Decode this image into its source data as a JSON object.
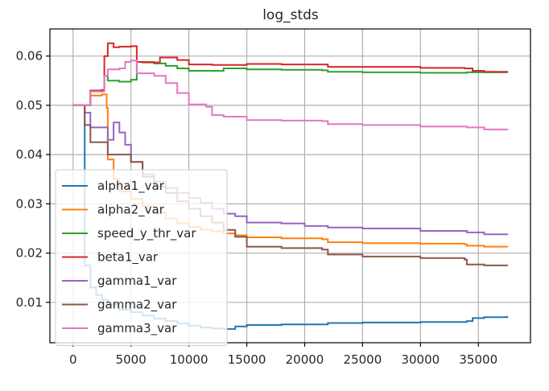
{
  "chart_data": {
    "type": "line",
    "title": "log_stds",
    "xlabel": "",
    "ylabel": "",
    "xlim": [
      -2000,
      39500
    ],
    "ylim": [
      0.0018,
      0.0655
    ],
    "x_ticks": [
      0,
      5000,
      10000,
      15000,
      20000,
      25000,
      30000,
      35000
    ],
    "x_tick_labels": [
      "0",
      "5000",
      "10000",
      "15000",
      "20000",
      "25000",
      "30000",
      "35000"
    ],
    "y_ticks": [
      0.01,
      0.02,
      0.03,
      0.04,
      0.05,
      0.06
    ],
    "y_tick_labels": [
      "0.01",
      "0.02",
      "0.03",
      "0.04",
      "0.05",
      "0.06"
    ],
    "grid": true,
    "legend_position": "lower-left",
    "series": [
      {
        "name": "alpha1_var",
        "color": "#1f77b4",
        "x": [
          0,
          800,
          1000,
          1500,
          2000,
          2500,
          3000,
          4000,
          5000,
          6000,
          7000,
          8000,
          9000,
          10000,
          11000,
          12000,
          13000,
          14000,
          15000,
          16000,
          18000,
          20000,
          22000,
          25000,
          30000,
          34000,
          34500,
          35500,
          37500
        ],
        "y": [
          0.05,
          0.05,
          0.0175,
          0.013,
          0.0115,
          0.0105,
          0.0095,
          0.0085,
          0.008,
          0.0073,
          0.0067,
          0.0062,
          0.0057,
          0.0053,
          0.0049,
          0.0047,
          0.0046,
          0.0051,
          0.0054,
          0.0054,
          0.0055,
          0.0055,
          0.0058,
          0.0059,
          0.006,
          0.0062,
          0.0068,
          0.007,
          0.0072
        ]
      },
      {
        "name": "alpha2_var",
        "color": "#ff7f0e",
        "x": [
          0,
          800,
          1500,
          2500,
          2900,
          3000,
          3500,
          4000,
          5000,
          6000,
          7000,
          8000,
          9000,
          10000,
          11000,
          12000,
          13000,
          14000,
          15000,
          18000,
          21500,
          22000,
          25000,
          30000,
          33800,
          34000,
          35500,
          37500
        ],
        "y": [
          0.05,
          0.05,
          0.052,
          0.0522,
          0.0495,
          0.039,
          0.035,
          0.0325,
          0.031,
          0.0295,
          0.0282,
          0.027,
          0.026,
          0.0253,
          0.0248,
          0.0244,
          0.024,
          0.0236,
          0.0232,
          0.023,
          0.0228,
          0.0222,
          0.022,
          0.0219,
          0.0218,
          0.0215,
          0.0213,
          0.0212
        ]
      },
      {
        "name": "speed_y_thr_var",
        "color": "#2ca02c",
        "x": [
          0,
          800,
          1500,
          2500,
          2700,
          3000,
          4000,
          5000,
          5500,
          7000,
          8000,
          9000,
          10000,
          12000,
          13000,
          15000,
          18000,
          21500,
          22000,
          25000,
          30000,
          34000,
          37500
        ],
        "y": [
          0.05,
          0.05,
          0.053,
          0.0531,
          0.056,
          0.055,
          0.0548,
          0.0552,
          0.0588,
          0.0585,
          0.058,
          0.0575,
          0.057,
          0.057,
          0.0575,
          0.0573,
          0.0572,
          0.0571,
          0.0568,
          0.0567,
          0.0566,
          0.0567,
          0.0566
        ]
      },
      {
        "name": "beta1_var",
        "color": "#d62728",
        "x": [
          0,
          800,
          1500,
          2500,
          2700,
          3000,
          3500,
          4000,
          5000,
          5500,
          6000,
          7000,
          7500,
          8000,
          9000,
          10000,
          12000,
          15000,
          18000,
          21500,
          22000,
          25000,
          30000,
          33800,
          34500,
          35500,
          37500
        ],
        "y": [
          0.05,
          0.05,
          0.053,
          0.0531,
          0.06,
          0.0626,
          0.0618,
          0.0619,
          0.062,
          0.0588,
          0.0587,
          0.0587,
          0.0597,
          0.0597,
          0.0592,
          0.0583,
          0.0582,
          0.0584,
          0.0583,
          0.0583,
          0.0578,
          0.0578,
          0.0576,
          0.0575,
          0.057,
          0.0568,
          0.0567
        ]
      },
      {
        "name": "gamma1_var",
        "color": "#9467bd",
        "x": [
          0,
          800,
          1000,
          1500,
          2500,
          3000,
          3500,
          4000,
          4500,
          5000,
          6000,
          7000,
          8000,
          9000,
          10000,
          11000,
          12000,
          13000,
          14000,
          15000,
          18000,
          20000,
          22000,
          25000,
          30000,
          34000,
          35500,
          37500
        ],
        "y": [
          0.05,
          0.05,
          0.0485,
          0.0455,
          0.0455,
          0.043,
          0.0465,
          0.0445,
          0.042,
          0.0385,
          0.036,
          0.0345,
          0.0332,
          0.0322,
          0.0312,
          0.0302,
          0.029,
          0.028,
          0.0275,
          0.0262,
          0.026,
          0.0255,
          0.0252,
          0.025,
          0.0245,
          0.0242,
          0.0238,
          0.0237
        ]
      },
      {
        "name": "gamma2_var",
        "color": "#8c564b",
        "x": [
          0,
          800,
          1000,
          1500,
          2500,
          3000,
          4000,
          5000,
          6000,
          7000,
          8000,
          9000,
          10000,
          11000,
          12000,
          13000,
          14000,
          15000,
          18000,
          21500,
          22000,
          25000,
          30000,
          33800,
          34000,
          35500,
          37500
        ],
        "y": [
          0.05,
          0.05,
          0.046,
          0.0425,
          0.0425,
          0.04,
          0.04,
          0.0385,
          0.0355,
          0.0335,
          0.0322,
          0.0305,
          0.029,
          0.0275,
          0.0262,
          0.0247,
          0.0233,
          0.0213,
          0.021,
          0.0207,
          0.0197,
          0.0193,
          0.019,
          0.0187,
          0.0177,
          0.0175,
          0.0174
        ]
      },
      {
        "name": "gamma3_var",
        "color": "#e377c2",
        "x": [
          0,
          800,
          1500,
          2500,
          2700,
          3000,
          4000,
          4500,
          5000,
          5500,
          7000,
          8000,
          9000,
          10000,
          11500,
          12000,
          13000,
          15000,
          18000,
          21500,
          22000,
          25000,
          30000,
          34000,
          35500,
          37500
        ],
        "y": [
          0.05,
          0.05,
          0.0528,
          0.0528,
          0.056,
          0.0573,
          0.0575,
          0.0588,
          0.0591,
          0.0565,
          0.056,
          0.0545,
          0.0525,
          0.0502,
          0.0497,
          0.048,
          0.0477,
          0.047,
          0.0469,
          0.0468,
          0.0462,
          0.046,
          0.0457,
          0.0455,
          0.0451,
          0.0449
        ]
      }
    ]
  }
}
